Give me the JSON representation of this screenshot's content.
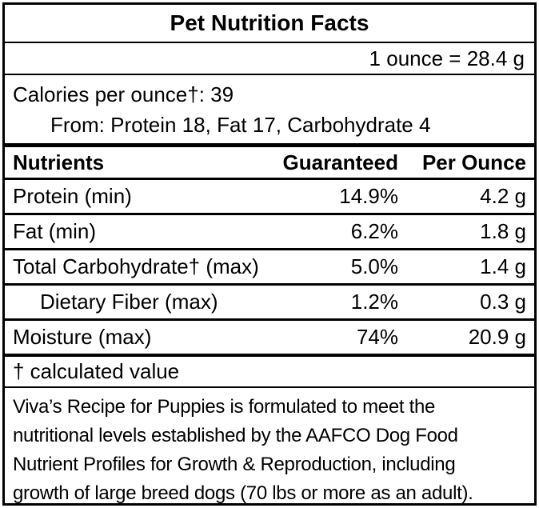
{
  "label": {
    "title": "Pet Nutrition Facts",
    "serving_equivalence": "1 ounce = 28.4 g",
    "calories": {
      "per_ounce_line": "Calories per ounce†: 39",
      "from_line": "From: Protein 18, Fat 17, Carbohydrate 4"
    },
    "columns": {
      "nutrients": "Nutrients",
      "guaranteed": "Guaranteed",
      "per_ounce": "Per Ounce"
    },
    "rows": [
      {
        "name": "Protein (min)",
        "guaranteed": "14.9%",
        "per_ounce": "4.2 g",
        "indent": false
      },
      {
        "name": "Fat (min)",
        "guaranteed": "6.2%",
        "per_ounce": "1.8 g",
        "indent": false
      },
      {
        "name": "Total Carbohydrate† (max)",
        "guaranteed": "5.0%",
        "per_ounce": "1.4 g",
        "indent": false
      },
      {
        "name": "Dietary Fiber (max)",
        "guaranteed": "1.2%",
        "per_ounce": "0.3 g",
        "indent": true
      },
      {
        "name": "Moisture (max)",
        "guaranteed": "74%",
        "per_ounce": "20.9 g",
        "indent": false
      }
    ],
    "footnote": "† calculated value",
    "statement_lines": [
      "Viva’s Recipe for Puppies is formulated to meet the",
      "nutritional levels established by the AAFCO Dog Food",
      "Nutrient Profiles for Growth & Reproduction, including",
      "growth of large breed dogs (70 lbs or more as an adult)."
    ],
    "colors": {
      "text": "#000000",
      "border": "#000000",
      "background": "#ffffff"
    }
  }
}
